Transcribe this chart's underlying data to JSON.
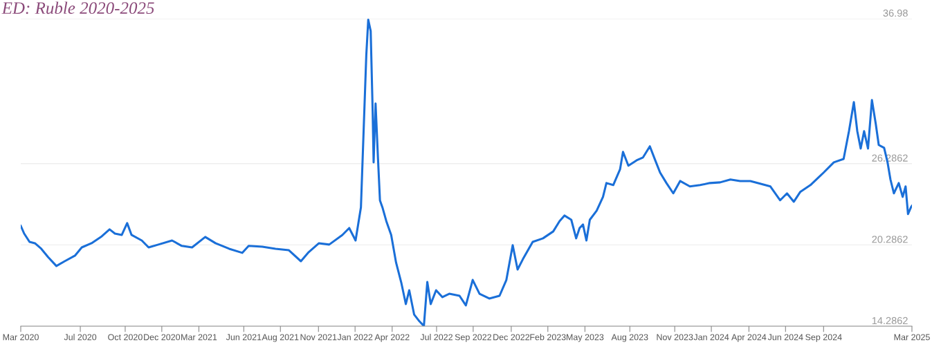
{
  "chart_data": {
    "type": "line",
    "title": "ED: Ruble 2020-2025",
    "x": [
      "2020-03-01",
      "2020-03-08",
      "2020-03-19",
      "2020-03-30",
      "2020-04-12",
      "2020-04-26",
      "2020-05-13",
      "2020-05-30",
      "2020-06-20",
      "2020-07-04",
      "2020-07-24",
      "2020-08-14",
      "2020-08-30",
      "2020-09-10",
      "2020-09-24",
      "2020-10-05",
      "2020-10-14",
      "2020-11-04",
      "2020-11-18",
      "2020-12-08",
      "2021-01-05",
      "2021-01-25",
      "2021-02-15",
      "2021-03-14",
      "2021-04-04",
      "2021-05-02",
      "2021-05-29",
      "2021-06-11",
      "2021-07-09",
      "2021-08-05",
      "2021-09-01",
      "2021-09-26",
      "2021-10-12",
      "2021-11-02",
      "2021-11-23",
      "2021-12-20",
      "2022-01-03",
      "2022-01-16",
      "2022-01-27",
      "2022-02-02",
      "2022-02-07",
      "2022-02-11",
      "2022-02-16",
      "2022-02-20",
      "2022-02-22",
      "2022-02-26",
      "2022-03-03",
      "2022-03-07",
      "2022-03-12",
      "2022-03-20",
      "2022-03-30",
      "2022-04-09",
      "2022-04-20",
      "2022-04-29",
      "2022-05-06",
      "2022-05-16",
      "2022-05-27",
      "2022-06-05",
      "2022-06-12",
      "2022-06-19",
      "2022-06-30",
      "2022-07-13",
      "2022-07-27",
      "2022-08-17",
      "2022-08-30",
      "2022-09-13",
      "2022-09-27",
      "2022-10-17",
      "2022-11-07",
      "2022-11-21",
      "2022-12-04",
      "2022-12-14",
      "2022-12-25",
      "2023-01-14",
      "2023-02-04",
      "2023-02-25",
      "2023-03-10",
      "2023-03-20",
      "2023-04-03",
      "2023-04-13",
      "2023-04-20",
      "2023-04-27",
      "2023-05-04",
      "2023-05-11",
      "2023-05-25",
      "2023-06-07",
      "2023-06-14",
      "2023-06-28",
      "2023-07-12",
      "2023-07-18",
      "2023-07-29",
      "2023-08-15",
      "2023-08-28",
      "2023-09-11",
      "2023-09-22",
      "2023-10-02",
      "2023-10-15",
      "2023-10-29",
      "2023-11-12",
      "2023-12-02",
      "2023-12-23",
      "2024-01-12",
      "2024-02-02",
      "2024-02-23",
      "2024-03-14",
      "2024-04-04",
      "2024-04-24",
      "2024-05-15",
      "2024-06-04",
      "2024-06-18",
      "2024-07-02",
      "2024-07-15",
      "2024-08-05",
      "2024-09-01",
      "2024-09-22",
      "2024-10-12",
      "2024-10-23",
      "2024-11-02",
      "2024-11-09",
      "2024-11-16",
      "2024-11-23",
      "2024-12-01",
      "2024-12-09",
      "2024-12-17",
      "2024-12-23",
      "2025-01-03",
      "2025-01-10",
      "2025-01-16",
      "2025-01-23",
      "2025-02-02",
      "2025-02-10",
      "2025-02-16",
      "2025-02-21",
      "2025-02-27",
      "2025-03-01"
    ],
    "series": [
      {
        "color": "#1a6fd8",
        "values": [
          21.69,
          21.12,
          20.51,
          20.41,
          20.0,
          19.39,
          18.73,
          19.08,
          19.49,
          20.1,
          20.41,
          20.92,
          21.43,
          21.12,
          21.02,
          21.89,
          21.02,
          20.61,
          20.1,
          20.31,
          20.61,
          20.21,
          20.1,
          20.87,
          20.41,
          20.0,
          19.7,
          20.21,
          20.15,
          20.0,
          19.9,
          19.08,
          19.75,
          20.41,
          20.31,
          21.02,
          21.53,
          20.61,
          23.06,
          29.19,
          34.29,
          36.9,
          36.07,
          30.21,
          26.38,
          30.72,
          26.63,
          23.57,
          23.06,
          22.04,
          21.02,
          18.98,
          17.45,
          15.92,
          16.94,
          15.15,
          14.64,
          14.3,
          17.55,
          15.92,
          16.94,
          16.43,
          16.68,
          16.53,
          15.82,
          17.7,
          16.68,
          16.33,
          16.53,
          17.7,
          20.26,
          18.47,
          19.24,
          20.51,
          20.77,
          21.28,
          22.04,
          22.45,
          22.14,
          20.77,
          21.53,
          21.79,
          20.61,
          22.14,
          22.81,
          23.83,
          24.85,
          24.7,
          25.87,
          27.15,
          26.13,
          26.53,
          26.74,
          27.56,
          26.53,
          25.62,
          24.85,
          24.09,
          25.0,
          24.6,
          24.7,
          24.85,
          24.9,
          25.11,
          25.0,
          25.0,
          24.8,
          24.6,
          23.58,
          24.09,
          23.47,
          24.19,
          24.7,
          25.62,
          26.38,
          26.63,
          28.68,
          30.82,
          28.68,
          27.4,
          28.68,
          27.4,
          30.97,
          29.19,
          27.66,
          27.45,
          26.38,
          25.11,
          24.09,
          24.85,
          23.83,
          24.6,
          22.56,
          23.06,
          23.17
        ]
      }
    ],
    "xlim": [
      "2020-03-01",
      "2025-03-01"
    ],
    "xticks": [
      {
        "value": "2020-03-01",
        "label": "Mar 2020"
      },
      {
        "value": "2020-07-01",
        "label": "Jul 2020"
      },
      {
        "value": "2020-10-01",
        "label": "Oct 2020"
      },
      {
        "value": "2020-12-15",
        "label": "Dec 2020"
      },
      {
        "value": "2021-03-01",
        "label": "Mar 2021"
      },
      {
        "value": "2021-06-01",
        "label": "Jun 2021"
      },
      {
        "value": "2021-08-15",
        "label": "Aug 2021"
      },
      {
        "value": "2021-11-01",
        "label": "Nov 2021"
      },
      {
        "value": "2022-01-15",
        "label": "Jan 2022"
      },
      {
        "value": "2022-04-01",
        "label": "Apr 2022"
      },
      {
        "value": "2022-07-01",
        "label": "Jul 2022"
      },
      {
        "value": "2022-09-14",
        "label": "Sep 2022"
      },
      {
        "value": "2022-12-01",
        "label": "Dec 2022"
      },
      {
        "value": "2023-02-14",
        "label": "Feb 2023"
      },
      {
        "value": "2023-05-01",
        "label": "May 2023"
      },
      {
        "value": "2023-08-01",
        "label": "Aug 2023"
      },
      {
        "value": "2023-11-01",
        "label": "Nov 2023"
      },
      {
        "value": "2024-01-15",
        "label": "Jan 2024"
      },
      {
        "value": "2024-04-01",
        "label": "Apr 2024"
      },
      {
        "value": "2024-06-15",
        "label": "Jun 2024"
      },
      {
        "value": "2024-09-01",
        "label": "Sep 2024"
      },
      {
        "value": "2025-03-01",
        "label": "Mar 2025"
      }
    ],
    "ylim": [
      14.2862,
      36.98
    ],
    "yticks": [
      14.2862,
      20.2862,
      26.2862,
      36.98
    ],
    "grid": "y",
    "legend": false,
    "marker": "none",
    "line_style": "solid"
  }
}
